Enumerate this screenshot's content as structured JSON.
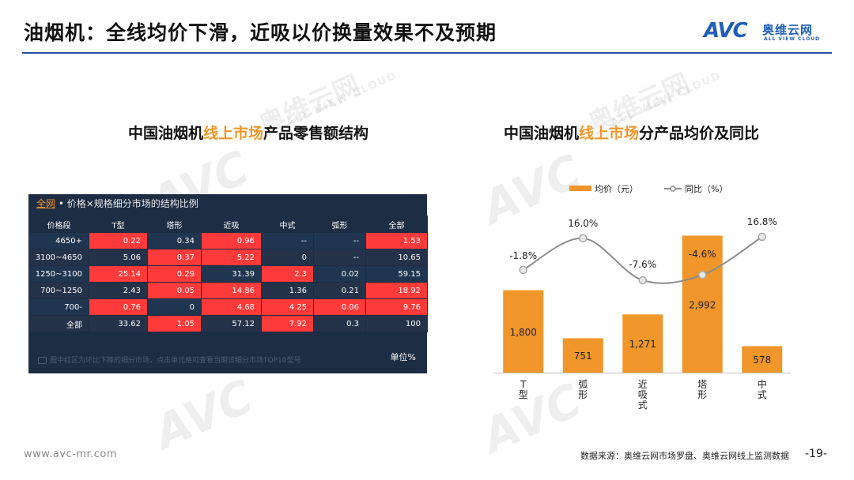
{
  "page": {
    "title": "油烟机：全线均价下滑，近吸以价换量效果不及预期",
    "footer_url": "www.avc-mr.com",
    "footer_source": "数据来源：奥维云网市场罗盘、奥维云网线上监测数据",
    "page_number": "-19-"
  },
  "logo": {
    "mark": "AVC",
    "cn": "奥维云网",
    "en": "ALL VIEW CLOUD"
  },
  "watermark": {
    "mark": "AVC",
    "cn": "奥维云网",
    "en": "ALL VIEW CLOUD"
  },
  "left_section": {
    "title_pre": "中国油烟机",
    "title_hl": "线上市场",
    "title_post": "产品零售额结构"
  },
  "right_section": {
    "title_pre": "中国油烟机",
    "title_hl": "线上市场",
    "title_post": "分产品均价及同比"
  },
  "table": {
    "tab_label": "全网",
    "header_text": " • 价格×规格细分市场的结构比例",
    "columns": [
      "价格段",
      "T型",
      "塔形",
      "近吸",
      "中式",
      "弧形",
      "全部"
    ],
    "rows": [
      {
        "label": "4650+",
        "cells": [
          "0.22",
          "0.34",
          "0.96",
          "--",
          "--",
          "1.53"
        ],
        "red": [
          true,
          false,
          true,
          false,
          false,
          true
        ]
      },
      {
        "label": "3100~4650",
        "cells": [
          "5.06",
          "0.37",
          "5.22",
          "0",
          "--",
          "10.65"
        ],
        "red": [
          false,
          true,
          true,
          false,
          false,
          false
        ]
      },
      {
        "label": "1250~3100",
        "cells": [
          "25.14",
          "0.29",
          "31.39",
          "2.3",
          "0.02",
          "59.15"
        ],
        "red": [
          true,
          true,
          false,
          true,
          false,
          false
        ]
      },
      {
        "label": "700~1250",
        "cells": [
          "2.43",
          "0.05",
          "14.86",
          "1.36",
          "0.21",
          "18.92"
        ],
        "red": [
          false,
          true,
          true,
          false,
          false,
          true
        ]
      },
      {
        "label": "700-",
        "cells": [
          "0.76",
          "0",
          "4.68",
          "4.25",
          "0.06",
          "9.76"
        ],
        "red": [
          true,
          false,
          true,
          true,
          true,
          true
        ]
      },
      {
        "label": "全部",
        "cells": [
          "33.62",
          "1.05",
          "57.12",
          "7.92",
          "0.3",
          "100"
        ],
        "red": [
          false,
          true,
          false,
          true,
          false,
          false
        ]
      }
    ],
    "note": "图中红区为环比下降的细分市场，点击单元格可查看当期该细分市场TOP10型号",
    "unit": "单位%"
  },
  "chart_data": {
    "type": "bar",
    "categories": [
      "T型",
      "弧形",
      "近吸式",
      "塔形",
      "中式"
    ],
    "category_labels_vertical": [
      [
        "T",
        "型"
      ],
      [
        "弧",
        "形"
      ],
      [
        "近",
        "吸",
        "式"
      ],
      [
        "塔",
        "形"
      ],
      [
        "中",
        "式"
      ]
    ],
    "series": [
      {
        "name": "均价（元）",
        "type": "bar",
        "values": [
          1800,
          751,
          1271,
          2992,
          578
        ],
        "labels": [
          "1,800",
          "751",
          "1,271",
          "2,992",
          "578"
        ],
        "color": "#f0962a"
      },
      {
        "name": "同比（%）",
        "type": "line",
        "values": [
          -1.8,
          16.0,
          -7.6,
          -4.6,
          16.8
        ],
        "labels": [
          "-1.8%",
          "16.0%",
          "-7.6%",
          "-4.6%",
          "16.8%"
        ],
        "color": "#8c8c8c"
      }
    ],
    "legend_position": "top",
    "grid": false
  }
}
